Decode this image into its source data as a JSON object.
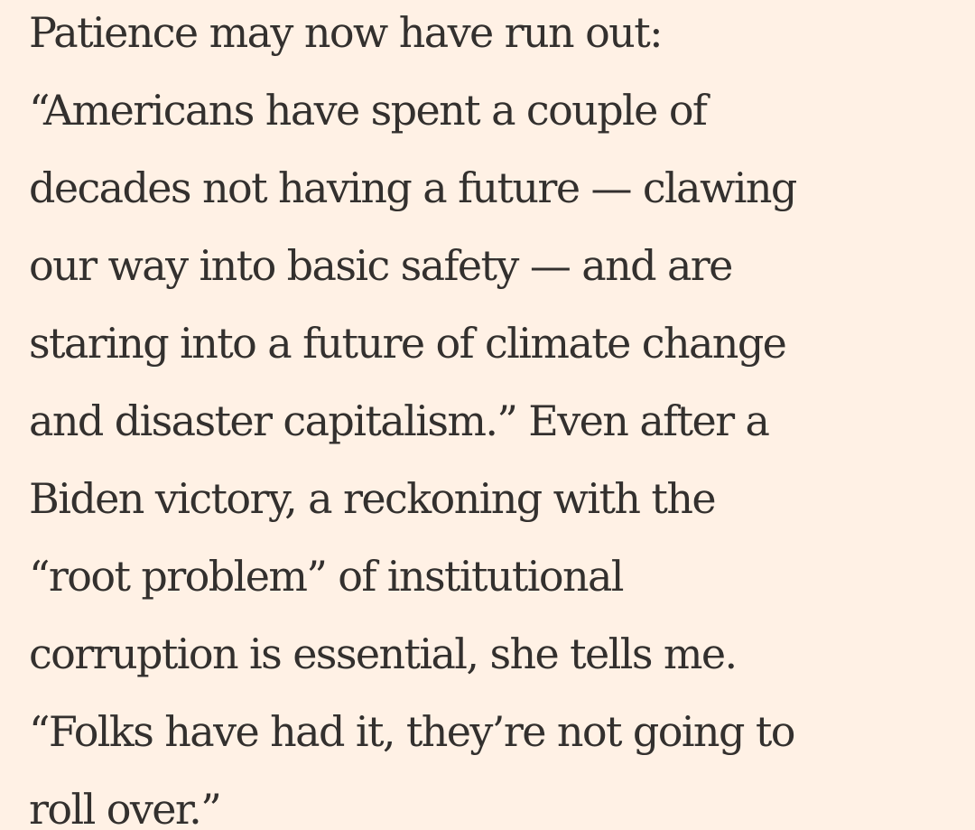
{
  "article": {
    "lines": [
      "Patience may now have run out:",
      "“Americans have spent a couple of",
      "decades not having a future — clawing",
      "our way into basic safety — and are",
      "staring into a future of climate change",
      "and disaster capitalism.” Even after a",
      "Biden victory, a reckoning with the",
      "“root problem” of institutional",
      "corruption is essential, she tells me.",
      "“Folks have had it, they’re not going to",
      "roll over.”"
    ]
  },
  "colors": {
    "background": "#fff1e5",
    "text": "#33302e"
  }
}
